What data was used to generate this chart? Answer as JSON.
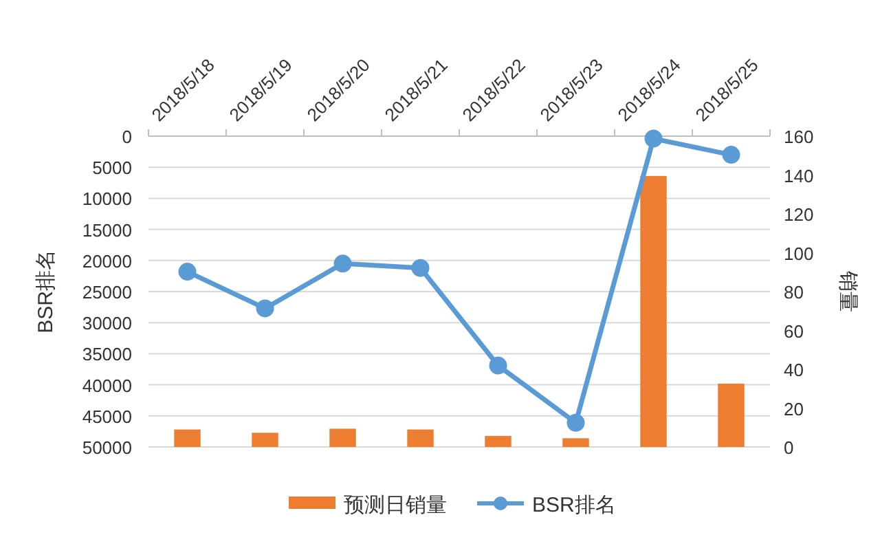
{
  "chart_data": {
    "type": "bar",
    "categories": [
      "2018/5/18",
      "2018/5/19",
      "2018/5/20",
      "2018/5/21",
      "2018/5/22",
      "2018/5/23",
      "2018/5/24",
      "2018/5/25"
    ],
    "series": [
      {
        "name": "预测日销量",
        "axis": "y2",
        "color": "#ed7d31",
        "values": [
          9.0,
          7.3,
          9.4,
          9.0,
          5.7,
          4.5,
          139.5,
          32.6
        ]
      },
      {
        "name": "BSR排名",
        "type": "line",
        "axis": "y",
        "color": "#5b9bd5",
        "values": [
          21800,
          27700,
          20500,
          21200,
          36900,
          46100,
          400,
          3000
        ]
      }
    ],
    "ylabel": "BSR排名",
    "y2label": "销量",
    "ylim": [
      50000,
      0
    ],
    "yticks": [
      0,
      5000,
      10000,
      15000,
      20000,
      25000,
      30000,
      35000,
      40000,
      45000,
      50000
    ],
    "y2lim": [
      0,
      160
    ],
    "y2ticks": [
      0,
      20,
      40,
      60,
      80,
      100,
      120,
      140,
      160
    ],
    "grid": "y",
    "legend": "bottom",
    "marker": "circle",
    "line_style": "solid"
  }
}
